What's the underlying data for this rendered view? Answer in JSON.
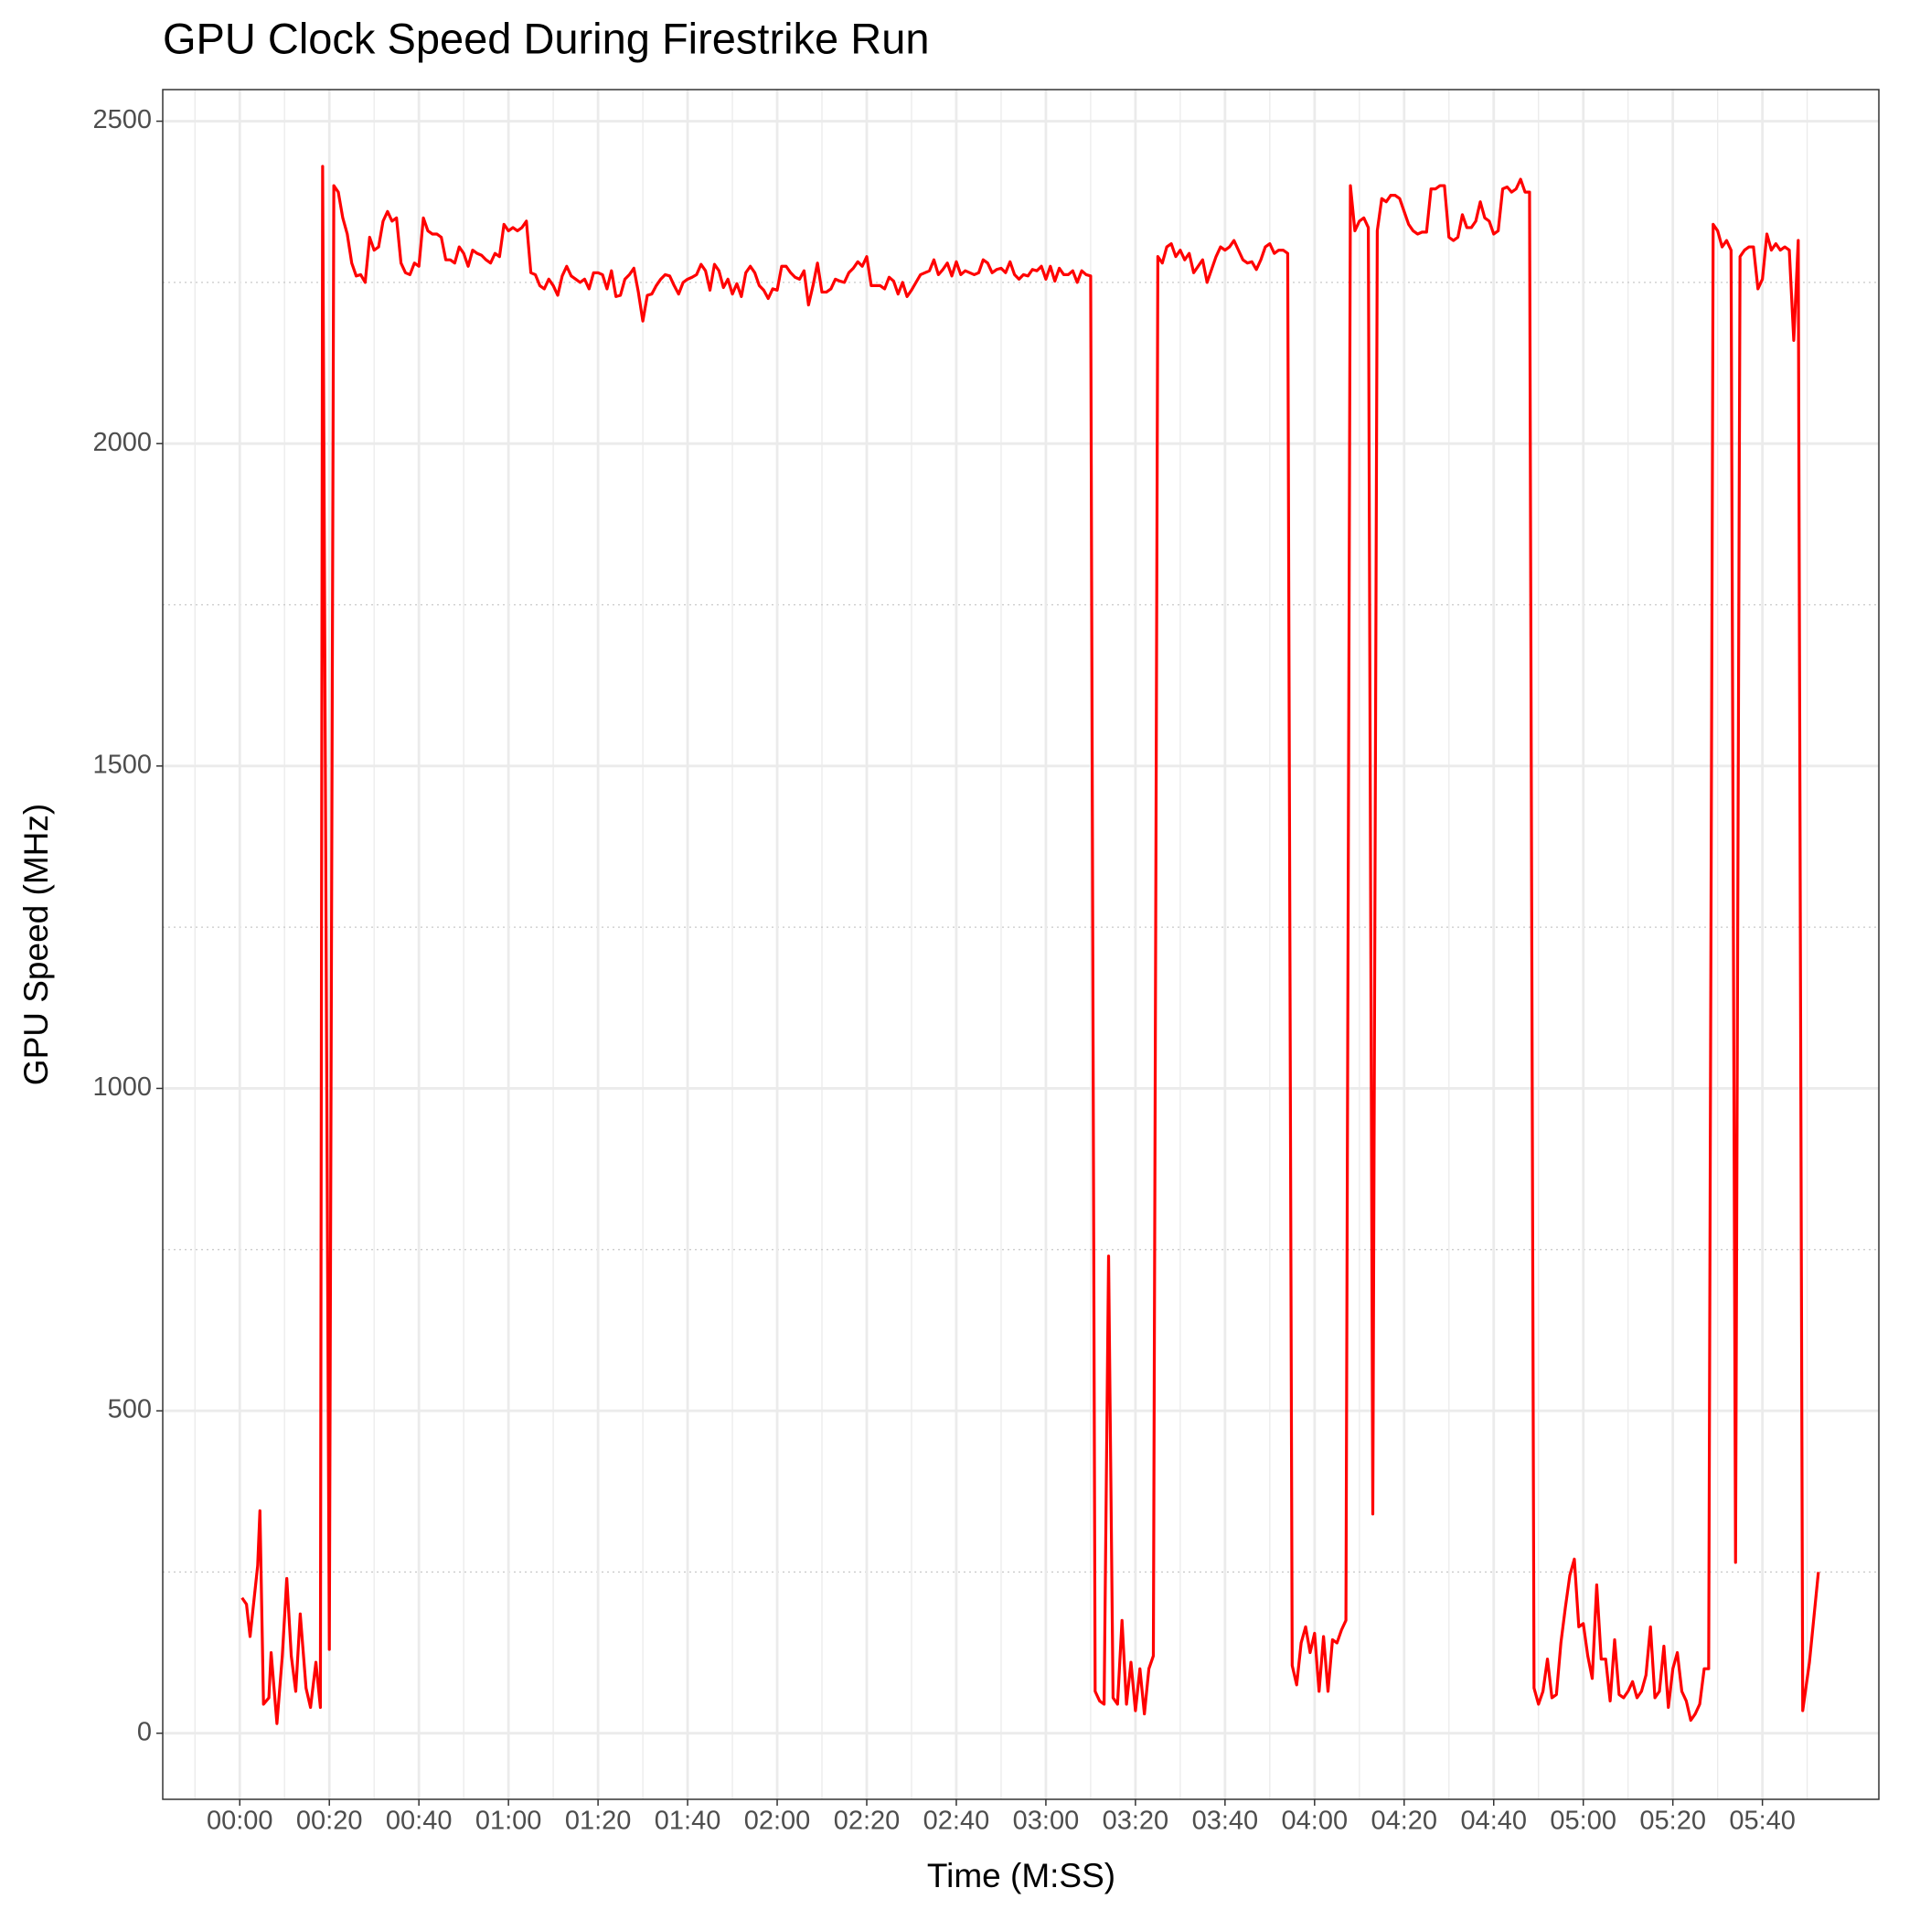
{
  "chart_data": {
    "type": "line",
    "title": "GPU Clock Speed During Firestrike Run",
    "x_label": "Time (M:SS)",
    "y_label": "GPU Speed (MHz)",
    "grid": true,
    "xlim": [
      -17.2,
      366
    ],
    "ylim": [
      -102.5,
      2549
    ],
    "xticks": [
      {
        "value": 0,
        "label": "00:00"
      },
      {
        "value": 20,
        "label": "00:20"
      },
      {
        "value": 40,
        "label": "00:40"
      },
      {
        "value": 60,
        "label": "01:00"
      },
      {
        "value": 80,
        "label": "01:20"
      },
      {
        "value": 100,
        "label": "01:40"
      },
      {
        "value": 120,
        "label": "02:00"
      },
      {
        "value": 140,
        "label": "02:20"
      },
      {
        "value": 160,
        "label": "02:40"
      },
      {
        "value": 180,
        "label": "03:00"
      },
      {
        "value": 200,
        "label": "03:20"
      },
      {
        "value": 220,
        "label": "03:40"
      },
      {
        "value": 240,
        "label": "04:00"
      },
      {
        "value": 260,
        "label": "04:20"
      },
      {
        "value": 280,
        "label": "04:40"
      },
      {
        "value": 300,
        "label": "05:00"
      },
      {
        "value": 320,
        "label": "05:20"
      },
      {
        "value": 340,
        "label": "05:40"
      }
    ],
    "xminorticks": [
      -10,
      10,
      30,
      50,
      70,
      90,
      110,
      130,
      150,
      170,
      190,
      210,
      230,
      250,
      270,
      290,
      310,
      330,
      350
    ],
    "yticks": [
      0,
      500,
      1000,
      1500,
      2000,
      2500
    ],
    "yminorticks": [
      250,
      750,
      1250,
      1750,
      2250
    ],
    "x": [
      0.5,
      1.5,
      2.3,
      4,
      4.5,
      5.3,
      6.5,
      7,
      8.3,
      9.5,
      10.5,
      11.5,
      12.5,
      13.5,
      14.8,
      15.8,
      17,
      18,
      18.5,
      20,
      21,
      22,
      23,
      24,
      25,
      26,
      27,
      28,
      29,
      30,
      31,
      32,
      33,
      34,
      35,
      36,
      37,
      38,
      39,
      40,
      41,
      42,
      43,
      44,
      45,
      46,
      47,
      48,
      49,
      50,
      51,
      52,
      53,
      54,
      55,
      56,
      57,
      58,
      59,
      60,
      61,
      62,
      63,
      64,
      65,
      66,
      67,
      68,
      69,
      70,
      71,
      72,
      73,
      74,
      75,
      76,
      77,
      78,
      79,
      80,
      81,
      82,
      83,
      84,
      85,
      86,
      87,
      88,
      89,
      90,
      91,
      92,
      93,
      94,
      95,
      96,
      97,
      98,
      99,
      100,
      101,
      102,
      103,
      104,
      105,
      106,
      107,
      108,
      109,
      110,
      111,
      112,
      113,
      114,
      115,
      116,
      117,
      118,
      119,
      120,
      121,
      122,
      123,
      124,
      125,
      126,
      127,
      128,
      129,
      130,
      131,
      132,
      133,
      134,
      135,
      136,
      137,
      138,
      139,
      140,
      141,
      142,
      143,
      144,
      145,
      146,
      147,
      148,
      149,
      150,
      151,
      152,
      153,
      154,
      155,
      156,
      157,
      158,
      159,
      160,
      161,
      162,
      163,
      164,
      165,
      166,
      167,
      168,
      169,
      170,
      171,
      172,
      173,
      174,
      175,
      176,
      177,
      178,
      179,
      180,
      181,
      182,
      183,
      184,
      185,
      186,
      187,
      188,
      189,
      190,
      191,
      192,
      193,
      194,
      195,
      196,
      197,
      198,
      199,
      200,
      201,
      202,
      203,
      204,
      205,
      206,
      207,
      208,
      209,
      210,
      211,
      212,
      213,
      214,
      215,
      216,
      217,
      218,
      219,
      220,
      221,
      222,
      223,
      224,
      225,
      226,
      227,
      228,
      229,
      230,
      231,
      232,
      233,
      234,
      235,
      236,
      237,
      238,
      239,
      240,
      241,
      242,
      243,
      244,
      245,
      246,
      247,
      248,
      249,
      250,
      251,
      252,
      253,
      254,
      255,
      256,
      257,
      258,
      259,
      260,
      261,
      262,
      263,
      264,
      265,
      266,
      267,
      268,
      269,
      270,
      271,
      272,
      273,
      274,
      275,
      276,
      277,
      278,
      279,
      280,
      281,
      282,
      283,
      284,
      285,
      286,
      287,
      288,
      289,
      290,
      291,
      292,
      293,
      294,
      295,
      296,
      297,
      298,
      299,
      300,
      301,
      302,
      303,
      304,
      305,
      306,
      307,
      308,
      309,
      310,
      311,
      312,
      313,
      314,
      315,
      316,
      317,
      318,
      319,
      320,
      321,
      322,
      323,
      324,
      325,
      326,
      327,
      328,
      329,
      330,
      331,
      332,
      333,
      334,
      335,
      336,
      337,
      338,
      339,
      340,
      341,
      342,
      343,
      344,
      345,
      346,
      347,
      348,
      349,
      350.5,
      352.5
    ],
    "series": [
      {
        "name": "GPU Speed",
        "color": "#ff0000",
        "values": [
          210,
          200,
          150,
          260,
          345,
          45,
          55,
          125,
          15,
          120,
          240,
          120,
          65,
          185,
          70,
          40,
          110,
          40,
          2430,
          130,
          2400,
          2390,
          2350,
          2325,
          2280,
          2260,
          2262,
          2250,
          2320,
          2300,
          2305,
          2345,
          2360,
          2345,
          2350,
          2280,
          2265,
          2262,
          2280,
          2275,
          2350,
          2330,
          2325,
          2325,
          2320,
          2285,
          2285,
          2280,
          2305,
          2295,
          2275,
          2300,
          2295,
          2292,
          2285,
          2280,
          2295,
          2290,
          2340,
          2330,
          2335,
          2330,
          2335,
          2345,
          2265,
          2262,
          2245,
          2240,
          2255,
          2245,
          2230,
          2260,
          2275,
          2260,
          2255,
          2250,
          2255,
          2240,
          2265,
          2265,
          2262,
          2240,
          2268,
          2228,
          2230,
          2255,
          2262,
          2272,
          2235,
          2190,
          2230,
          2232,
          2245,
          2255,
          2262,
          2260,
          2245,
          2232,
          2250,
          2255,
          2258,
          2262,
          2278,
          2268,
          2238,
          2278,
          2268,
          2242,
          2255,
          2232,
          2248,
          2228,
          2265,
          2275,
          2265,
          2245,
          2238,
          2225,
          2240,
          2238,
          2275,
          2275,
          2265,
          2258,
          2255,
          2268,
          2215,
          2245,
          2280,
          2235,
          2235,
          2240,
          2255,
          2252,
          2250,
          2265,
          2272,
          2282,
          2275,
          2290,
          2245,
          2245,
          2245,
          2240,
          2258,
          2252,
          2232,
          2250,
          2228,
          2238,
          2250,
          2262,
          2265,
          2268,
          2285,
          2262,
          2270,
          2280,
          2260,
          2282,
          2262,
          2268,
          2265,
          2262,
          2265,
          2285,
          2280,
          2265,
          2270,
          2272,
          2265,
          2282,
          2262,
          2255,
          2262,
          2260,
          2270,
          2268,
          2275,
          2255,
          2275,
          2252,
          2272,
          2262,
          2262,
          2268,
          2250,
          2268,
          2262,
          2260,
          65,
          50,
          45,
          740,
          55,
          45,
          175,
          45,
          110,
          35,
          100,
          30,
          100,
          120,
          2290,
          2280,
          2305,
          2310,
          2290,
          2300,
          2285,
          2295,
          2265,
          2275,
          2285,
          2250,
          2270,
          2290,
          2305,
          2300,
          2305,
          2315,
          2300,
          2285,
          2280,
          2282,
          2270,
          2285,
          2305,
          2310,
          2295,
          2300,
          2300,
          2295,
          105,
          75,
          140,
          165,
          125,
          155,
          65,
          150,
          65,
          145,
          140,
          160,
          175,
          2400,
          2330,
          2345,
          2350,
          2335,
          340,
          2330,
          2380,
          2375,
          2385,
          2385,
          2380,
          2360,
          2340,
          2330,
          2325,
          2328,
          2328,
          2395,
          2395,
          2400,
          2400,
          2320,
          2315,
          2320,
          2355,
          2335,
          2335,
          2345,
          2375,
          2350,
          2345,
          2325,
          2330,
          2395,
          2398,
          2390,
          2395,
          2410,
          2390,
          2390,
          70,
          45,
          65,
          115,
          55,
          60,
          140,
          195,
          245,
          270,
          165,
          170,
          120,
          85,
          230,
          115,
          115,
          50,
          145,
          60,
          55,
          65,
          80,
          55,
          65,
          90,
          165,
          55,
          65,
          135,
          40,
          100,
          125,
          65,
          50,
          20,
          30,
          45,
          100,
          100,
          2340,
          2330,
          2305,
          2315,
          2300,
          265,
          2290,
          2300,
          2305,
          2305,
          2240,
          2255,
          2325,
          2300,
          2310,
          2300,
          2305,
          2300,
          2160,
          2315,
          35,
          110,
          250
        ]
      }
    ]
  }
}
